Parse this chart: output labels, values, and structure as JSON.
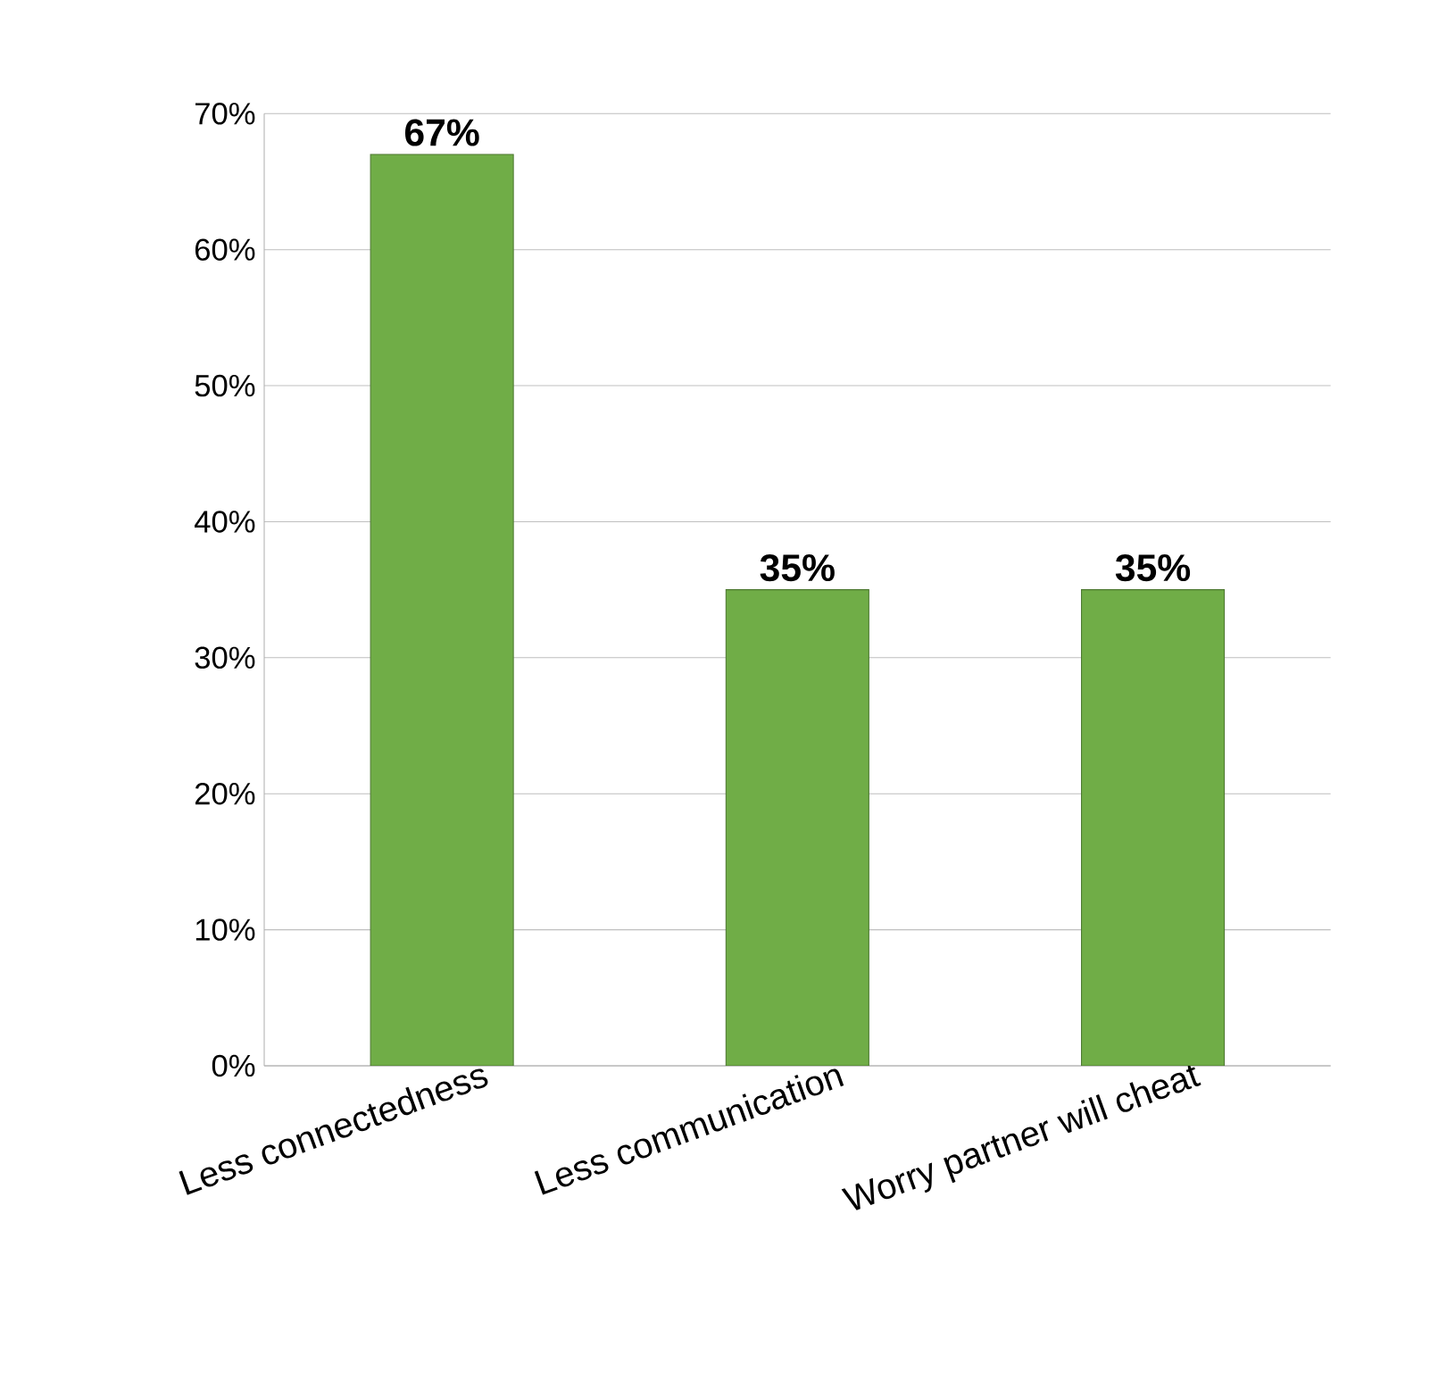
{
  "chart_data": {
    "type": "bar",
    "categories": [
      "Less connectedness",
      "Less communication",
      "Worry partner will cheat"
    ],
    "values": [
      67,
      35,
      35
    ],
    "color": "#70ad47",
    "value_labels": [
      "67%",
      "35%",
      "35%"
    ],
    "ylim": [
      0,
      70
    ],
    "yticks": [
      {
        "value": 0,
        "label": "0%"
      },
      {
        "value": 10,
        "label": "10%"
      },
      {
        "value": 20,
        "label": "20%"
      },
      {
        "value": 30,
        "label": "30%"
      },
      {
        "value": 40,
        "label": "40%"
      },
      {
        "value": 50,
        "label": "50%"
      },
      {
        "value": 60,
        "label": "60%"
      },
      {
        "value": 70,
        "label": "70%"
      }
    ],
    "grid": "y"
  }
}
